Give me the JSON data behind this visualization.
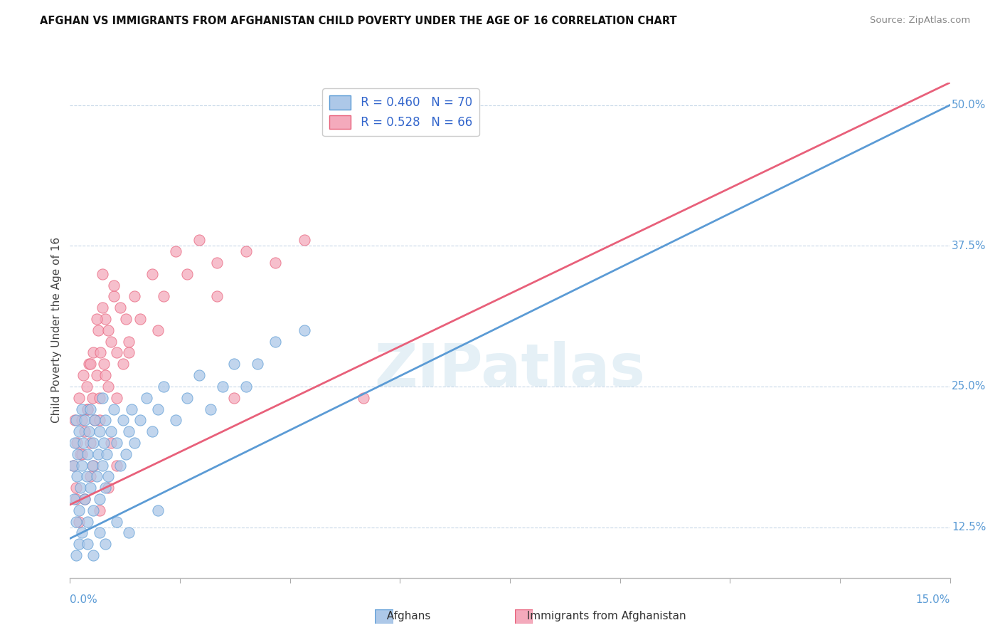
{
  "title": "AFGHAN VS IMMIGRANTS FROM AFGHANISTAN CHILD POVERTY UNDER THE AGE OF 16 CORRELATION CHART",
  "source": "Source: ZipAtlas.com",
  "ylabel_label": "Child Poverty Under the Age of 16",
  "legend_blue_r": "R = 0.460",
  "legend_blue_n": "N = 70",
  "legend_pink_r": "R = 0.528",
  "legend_pink_n": "N = 66",
  "blue_color": "#adc8e8",
  "pink_color": "#f4aabc",
  "blue_line_color": "#5b9bd5",
  "pink_line_color": "#e8607a",
  "watermark_text": "ZIPatlas",
  "xlim": [
    0.0,
    15.0
  ],
  "ylim_min": 8.0,
  "ylim_max": 52.0,
  "ytick_vals": [
    12.5,
    25.0,
    37.5,
    50.0
  ],
  "blue_line_y0": 11.5,
  "blue_line_y1": 50.0,
  "pink_line_y0": 14.5,
  "pink_line_y1": 52.0,
  "blue_scatter_x": [
    0.05,
    0.07,
    0.08,
    0.1,
    0.1,
    0.12,
    0.13,
    0.15,
    0.15,
    0.18,
    0.2,
    0.2,
    0.22,
    0.25,
    0.25,
    0.28,
    0.3,
    0.3,
    0.32,
    0.35,
    0.35,
    0.38,
    0.4,
    0.4,
    0.42,
    0.45,
    0.48,
    0.5,
    0.5,
    0.55,
    0.55,
    0.58,
    0.6,
    0.6,
    0.62,
    0.65,
    0.7,
    0.75,
    0.8,
    0.85,
    0.9,
    0.95,
    1.0,
    1.05,
    1.1,
    1.2,
    1.3,
    1.4,
    1.5,
    1.6,
    1.8,
    2.0,
    2.2,
    2.4,
    2.6,
    2.8,
    3.0,
    3.2,
    3.5,
    4.0,
    0.1,
    0.15,
    0.2,
    0.3,
    0.4,
    0.5,
    0.6,
    0.8,
    1.0,
    1.5
  ],
  "blue_scatter_y": [
    18.0,
    15.0,
    20.0,
    13.0,
    22.0,
    17.0,
    19.0,
    14.0,
    21.0,
    16.0,
    18.0,
    23.0,
    20.0,
    15.0,
    22.0,
    17.0,
    19.0,
    13.0,
    21.0,
    16.0,
    23.0,
    18.0,
    20.0,
    14.0,
    22.0,
    17.0,
    19.0,
    15.0,
    21.0,
    18.0,
    24.0,
    20.0,
    16.0,
    22.0,
    19.0,
    17.0,
    21.0,
    23.0,
    20.0,
    18.0,
    22.0,
    19.0,
    21.0,
    23.0,
    20.0,
    22.0,
    24.0,
    21.0,
    23.0,
    25.0,
    22.0,
    24.0,
    26.0,
    23.0,
    25.0,
    27.0,
    25.0,
    27.0,
    29.0,
    30.0,
    10.0,
    11.0,
    12.0,
    11.0,
    10.0,
    12.0,
    11.0,
    13.0,
    12.0,
    14.0
  ],
  "pink_scatter_x": [
    0.05,
    0.08,
    0.1,
    0.12,
    0.15,
    0.18,
    0.2,
    0.22,
    0.25,
    0.28,
    0.3,
    0.32,
    0.35,
    0.38,
    0.4,
    0.42,
    0.45,
    0.48,
    0.5,
    0.52,
    0.55,
    0.58,
    0.6,
    0.65,
    0.7,
    0.75,
    0.8,
    0.85,
    0.9,
    0.95,
    1.0,
    1.1,
    1.2,
    1.4,
    1.6,
    1.8,
    2.0,
    2.2,
    2.5,
    3.0,
    0.1,
    0.2,
    0.3,
    0.4,
    0.5,
    0.6,
    0.7,
    0.8,
    1.0,
    1.5,
    2.5,
    3.5,
    4.0,
    0.35,
    0.45,
    0.55,
    0.65,
    0.75,
    2.8,
    5.0,
    0.15,
    0.25,
    0.35,
    0.5,
    0.65,
    0.8
  ],
  "pink_scatter_y": [
    18.0,
    22.0,
    16.0,
    20.0,
    24.0,
    19.0,
    22.0,
    26.0,
    21.0,
    25.0,
    23.0,
    27.0,
    20.0,
    24.0,
    28.0,
    22.0,
    26.0,
    30.0,
    24.0,
    28.0,
    32.0,
    27.0,
    31.0,
    25.0,
    29.0,
    33.0,
    28.0,
    32.0,
    27.0,
    31.0,
    29.0,
    33.0,
    31.0,
    35.0,
    33.0,
    37.0,
    35.0,
    38.0,
    36.0,
    37.0,
    15.0,
    19.0,
    23.0,
    18.0,
    22.0,
    26.0,
    20.0,
    24.0,
    28.0,
    30.0,
    33.0,
    36.0,
    38.0,
    27.0,
    31.0,
    35.0,
    30.0,
    34.0,
    24.0,
    24.0,
    13.0,
    15.0,
    17.0,
    14.0,
    16.0,
    18.0
  ]
}
